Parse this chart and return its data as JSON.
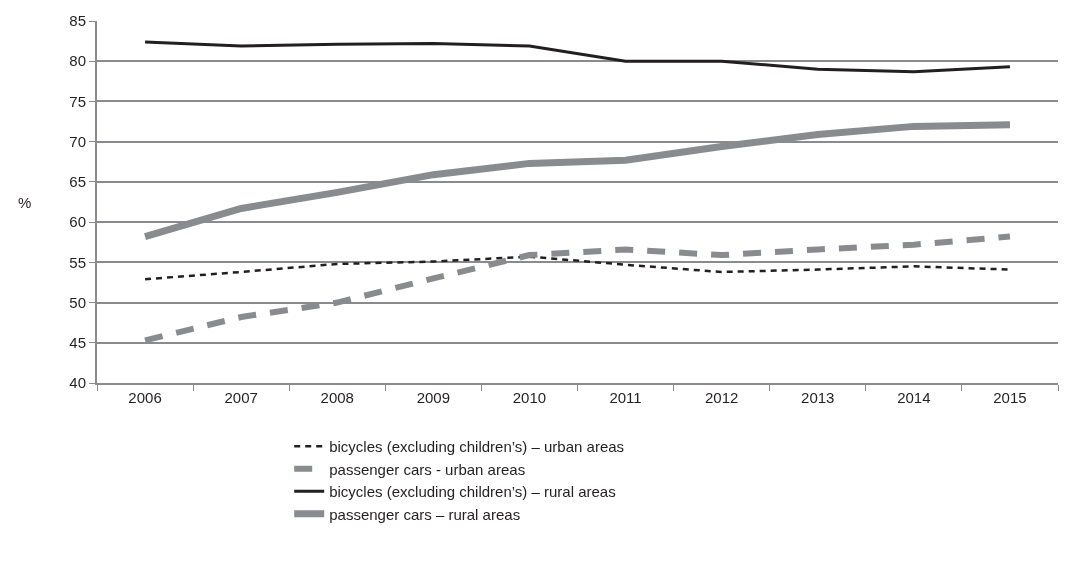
{
  "chart_data": {
    "type": "line",
    "ylabel": "%",
    "categories": [
      "2006",
      "2007",
      "2008",
      "2009",
      "2010",
      "2011",
      "2012",
      "2013",
      "2014",
      "2015"
    ],
    "ylim": [
      40,
      85
    ],
    "yticks": [
      40,
      45,
      50,
      55,
      60,
      65,
      70,
      75,
      80,
      85
    ],
    "grid": "y",
    "legend": "bottom",
    "marker": "none",
    "series": [
      {
        "name": "bicycles (excluding children’s) – urban areas",
        "color": "#231f20",
        "line_style": "dotted",
        "values": [
          52.9,
          53.8,
          54.8,
          55.1,
          55.7,
          54.7,
          53.8,
          54.1,
          54.5,
          54.1
        ]
      },
      {
        "name": "passenger cars - urban areas",
        "color": "#8a8b8f",
        "line_style": "dashed",
        "values": [
          45.3,
          48.2,
          50.0,
          53.0,
          55.9,
          56.6,
          55.9,
          56.6,
          57.2,
          58.2
        ]
      },
      {
        "name": "bicycles (excluding children’s) – rural areas",
        "color": "#231f20",
        "line_style": "solid",
        "values": [
          82.4,
          81.9,
          82.1,
          82.2,
          81.9,
          80.0,
          80.0,
          79.0,
          78.7,
          79.3
        ]
      },
      {
        "name": "passenger cars – rural areas",
        "color": "#8a8b8f",
        "line_style": "solid",
        "values": [
          58.2,
          61.7,
          63.7,
          65.9,
          67.3,
          67.7,
          69.4,
          70.9,
          71.9,
          72.1
        ]
      }
    ]
  }
}
